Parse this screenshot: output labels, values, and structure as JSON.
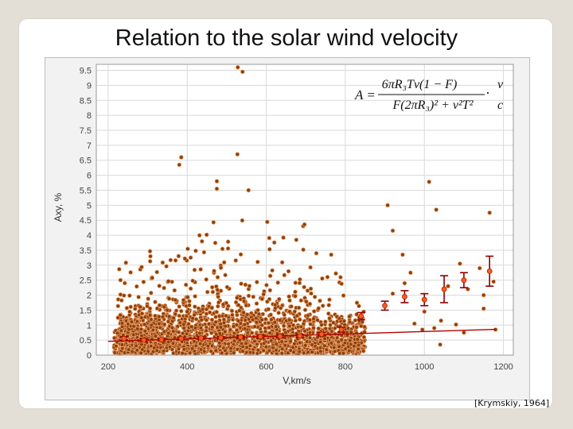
{
  "slide": {
    "title": "Relation to the solar wind velocity",
    "citation": "[Krymskiy, 1964]"
  },
  "colors": {
    "scatter_fill": "#8a4108",
    "scatter_outline": "#f0a070",
    "fit_line": "#b00000",
    "mean_marker": "#ff5a1e",
    "errorbar": "#8b0000",
    "plot_bg": "#ffffff",
    "grid": "#d9d9d9"
  },
  "formula": {
    "lhs": "A =",
    "numerator": "6πR₃Tv(1 − F)",
    "denominator": "F(2πR₃)² + v²T²",
    "dot": "·",
    "frac2_num": "v",
    "frac2_den": "c"
  },
  "chart_data": {
    "type": "scatter",
    "xlabel": "V,km/s",
    "ylabel": "Axy, %",
    "xlim": [
      170,
      1225
    ],
    "ylim": [
      0,
      9.7
    ],
    "x_ticks": [
      200,
      400,
      600,
      800,
      1000,
      1200
    ],
    "y_ticks": [
      0,
      0.5,
      1,
      1.5,
      2,
      2.5,
      3,
      3.5,
      4,
      4.5,
      5,
      5.5,
      6,
      6.5,
      7,
      7.5,
      8,
      8.5,
      9,
      9.5
    ],
    "grid": true,
    "fit_line": {
      "x": [
        200,
        1180
      ],
      "y": [
        0.46,
        0.86
      ]
    },
    "binned_means": [
      {
        "x": 240,
        "y": 0.55,
        "err": 0.06
      },
      {
        "x": 290,
        "y": 0.5,
        "err": 0.05
      },
      {
        "x": 335,
        "y": 0.52,
        "err": 0.04
      },
      {
        "x": 385,
        "y": 0.55,
        "err": 0.04
      },
      {
        "x": 435,
        "y": 0.57,
        "err": 0.04
      },
      {
        "x": 485,
        "y": 0.58,
        "err": 0.04
      },
      {
        "x": 535,
        "y": 0.6,
        "err": 0.04
      },
      {
        "x": 585,
        "y": 0.62,
        "err": 0.05
      },
      {
        "x": 635,
        "y": 0.63,
        "err": 0.05
      },
      {
        "x": 685,
        "y": 0.64,
        "err": 0.05
      },
      {
        "x": 740,
        "y": 0.7,
        "err": 0.06
      },
      {
        "x": 790,
        "y": 0.85,
        "err": 0.08
      },
      {
        "x": 840,
        "y": 1.3,
        "err": 0.12
      },
      {
        "x": 900,
        "y": 1.65,
        "err": 0.15
      },
      {
        "x": 950,
        "y": 1.95,
        "err": 0.2
      },
      {
        "x": 1000,
        "y": 1.85,
        "err": 0.2
      },
      {
        "x": 1050,
        "y": 2.2,
        "err": 0.45
      },
      {
        "x": 1100,
        "y": 2.5,
        "err": 0.25
      },
      {
        "x": 1165,
        "y": 2.8,
        "err": 0.5
      }
    ],
    "outliers": [
      [
        528,
        9.6
      ],
      [
        540,
        9.45
      ],
      [
        385,
        6.6
      ],
      [
        380,
        6.35
      ],
      [
        527,
        6.7
      ],
      [
        475,
        5.8
      ],
      [
        555,
        5.5
      ],
      [
        475,
        5.55
      ],
      [
        1012,
        5.78
      ],
      [
        1030,
        4.85
      ],
      [
        907,
        5.0
      ],
      [
        1165,
        4.75
      ],
      [
        1140,
        2.9
      ],
      [
        1175,
        2.45
      ],
      [
        1150,
        1.55
      ],
      [
        1180,
        0.85
      ],
      [
        1000,
        1.45
      ],
      [
        1025,
        0.9
      ],
      [
        1042,
        1.15
      ],
      [
        1080,
        1.02
      ],
      [
        1110,
        2.2
      ],
      [
        1060,
        2.3
      ],
      [
        1090,
        3.05
      ],
      [
        945,
        3.35
      ],
      [
        975,
        1.05
      ],
      [
        950,
        2.4
      ],
      [
        920,
        2.05
      ],
      [
        965,
        2.75
      ],
      [
        1040,
        0.35
      ],
      [
        995,
        0.85
      ],
      [
        920,
        4.15
      ],
      [
        1100,
        0.75
      ],
      [
        1150,
        2.0
      ]
    ]
  }
}
